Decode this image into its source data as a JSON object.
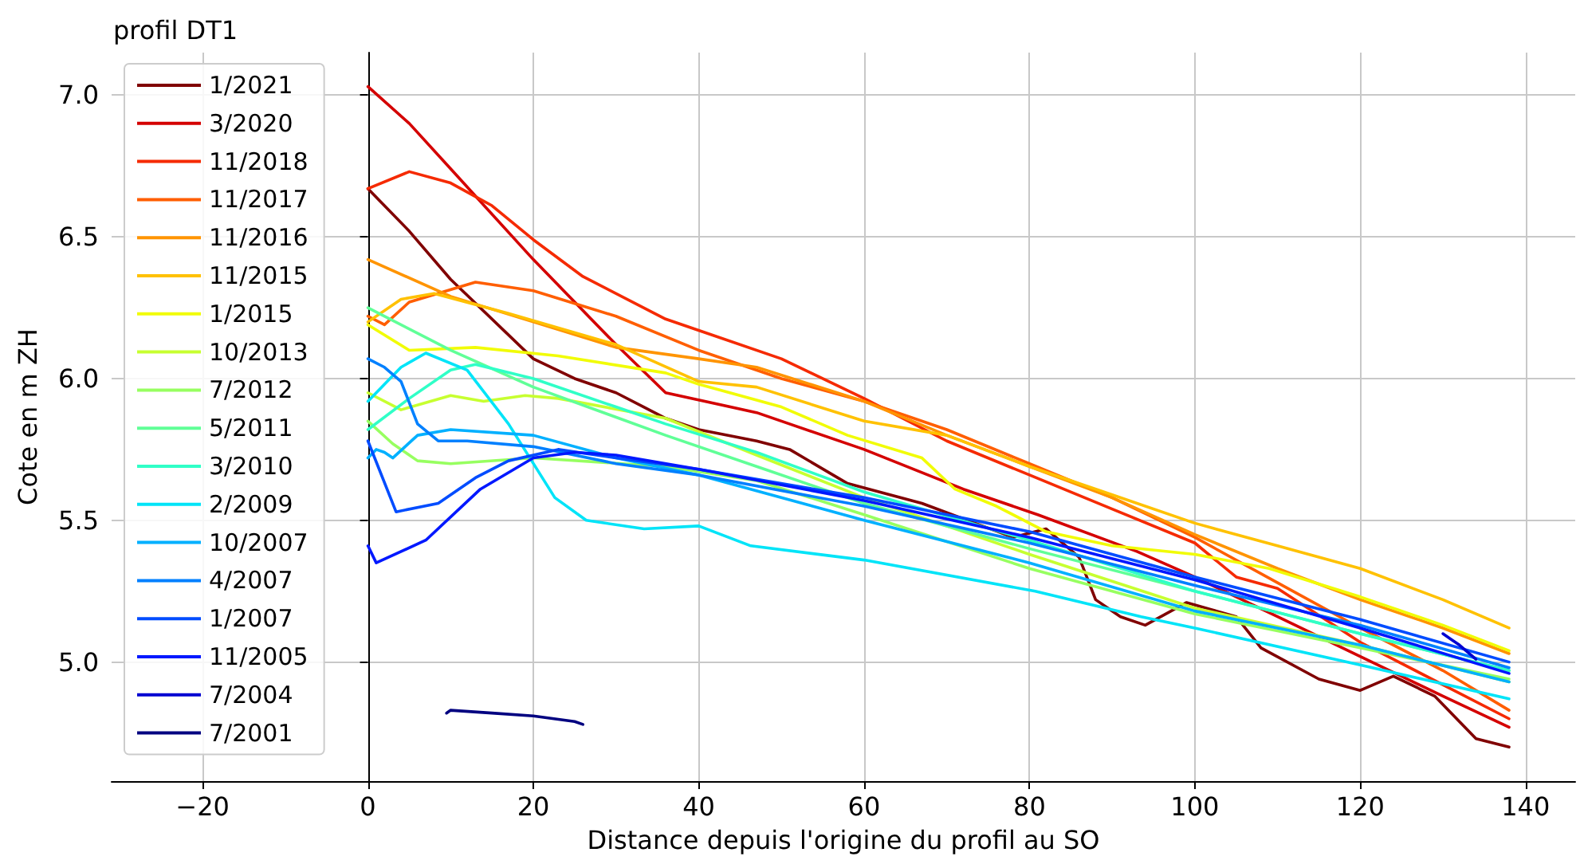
{
  "chart_data": {
    "type": "line",
    "title": "profil DT1",
    "xlabel": "Distance depuis l'origine du profil au SO",
    "ylabel": "Cote en m ZH",
    "xlim": [
      -31,
      146
    ],
    "ylim": [
      4.58,
      7.15
    ],
    "xticks": [
      -20,
      0,
      20,
      40,
      60,
      80,
      100,
      120,
      140
    ],
    "yticks": [
      {
        "value": 5,
        "label": "5.0"
      },
      {
        "value": 5.5,
        "label": "5.5"
      },
      {
        "value": 6,
        "label": "6.0"
      },
      {
        "value": 6.5,
        "label": "6.5"
      },
      {
        "value": 7,
        "label": "7.0"
      }
    ],
    "grid": true,
    "legend": "top left",
    "marker": "none",
    "line_style": "solid",
    "series": [
      {
        "name": "1/2021",
        "color": "#800000",
        "x": [
          0,
          5,
          10,
          20,
          25,
          30,
          36,
          40,
          47,
          51,
          58,
          67,
          78,
          82,
          86,
          88,
          91,
          94,
          99,
          105,
          108,
          115,
          120,
          124,
          129,
          134,
          138
        ],
        "values": [
          6.67,
          6.52,
          6.35,
          6.07,
          6.0,
          5.95,
          5.86,
          5.82,
          5.78,
          5.75,
          5.63,
          5.56,
          5.44,
          5.47,
          5.37,
          5.22,
          5.16,
          5.13,
          5.21,
          5.16,
          5.05,
          4.94,
          4.9,
          4.95,
          4.88,
          4.73,
          4.7
        ]
      },
      {
        "name": "3/2020",
        "color": "#d40000",
        "x": [
          0,
          5,
          10,
          20,
          30,
          36,
          47,
          60,
          72,
          81,
          93,
          100,
          110,
          120,
          130,
          138
        ],
        "values": [
          7.03,
          6.9,
          6.74,
          6.42,
          6.12,
          5.95,
          5.88,
          5.75,
          5.61,
          5.52,
          5.39,
          5.3,
          5.16,
          5.02,
          4.88,
          4.77
        ]
      },
      {
        "name": "11/2018",
        "color": "#f52a00",
        "x": [
          0,
          5,
          10,
          15,
          20,
          26,
          36,
          40,
          50,
          60,
          70,
          80,
          90,
          100,
          105,
          110,
          120,
          130,
          138
        ],
        "values": [
          6.67,
          6.73,
          6.69,
          6.61,
          6.49,
          6.36,
          6.21,
          6.17,
          6.07,
          5.93,
          5.78,
          5.66,
          5.54,
          5.42,
          5.3,
          5.26,
          5.07,
          4.92,
          4.8
        ]
      },
      {
        "name": "11/2017",
        "color": "#ff5e00",
        "x": [
          0,
          2,
          5,
          13,
          20,
          30,
          40,
          50,
          60,
          70,
          80,
          90,
          100,
          110,
          120,
          130,
          138
        ],
        "values": [
          6.22,
          6.19,
          6.27,
          6.34,
          6.31,
          6.22,
          6.1,
          6.0,
          5.92,
          5.82,
          5.7,
          5.58,
          5.44,
          5.28,
          5.12,
          4.97,
          4.83
        ]
      },
      {
        "name": "11/2016",
        "color": "#ff9400",
        "x": [
          0,
          10,
          20,
          30,
          40,
          47,
          60,
          70,
          80,
          90,
          100,
          110,
          120,
          130,
          138
        ],
        "values": [
          6.42,
          6.29,
          6.2,
          6.11,
          6.07,
          6.04,
          5.92,
          5.8,
          5.69,
          5.58,
          5.45,
          5.33,
          5.22,
          5.12,
          5.03
        ]
      },
      {
        "name": "11/2015",
        "color": "#ffc100",
        "x": [
          0,
          4,
          8,
          17,
          30,
          40,
          47,
          60,
          70,
          80,
          90,
          100,
          110,
          120,
          130,
          138
        ],
        "values": [
          6.2,
          6.28,
          6.3,
          6.23,
          6.12,
          5.99,
          5.97,
          5.85,
          5.8,
          5.69,
          5.59,
          5.49,
          5.41,
          5.33,
          5.22,
          5.12
        ]
      },
      {
        "name": "1/2015",
        "color": "#f1fc06",
        "x": [
          0,
          5,
          13,
          23,
          36,
          40,
          50,
          58,
          67,
          71,
          76,
          82,
          90,
          100,
          109,
          120,
          130,
          138
        ],
        "values": [
          6.19,
          6.1,
          6.11,
          6.08,
          6.02,
          5.98,
          5.9,
          5.8,
          5.72,
          5.61,
          5.55,
          5.46,
          5.41,
          5.38,
          5.33,
          5.23,
          5.13,
          5.04
        ]
      },
      {
        "name": "10/2013",
        "color": "#c7ff30",
        "x": [
          0,
          4,
          10,
          14,
          19,
          23,
          36,
          47,
          60,
          80,
          100,
          120,
          138
        ],
        "values": [
          5.95,
          5.89,
          5.94,
          5.92,
          5.94,
          5.93,
          5.86,
          5.73,
          5.58,
          5.38,
          5.19,
          5.06,
          4.93
        ]
      },
      {
        "name": "7/2012",
        "color": "#97ff60",
        "x": [
          0,
          3,
          6,
          10,
          20,
          36,
          47,
          60,
          80,
          100,
          120,
          138
        ],
        "values": [
          5.85,
          5.77,
          5.71,
          5.7,
          5.72,
          5.69,
          5.64,
          5.52,
          5.33,
          5.17,
          5.05,
          4.94
        ]
      },
      {
        "name": "5/2011",
        "color": "#60ff97",
        "x": [
          0,
          10,
          20,
          36,
          47,
          60,
          80,
          100,
          120,
          138
        ],
        "values": [
          6.25,
          6.1,
          5.97,
          5.8,
          5.69,
          5.56,
          5.4,
          5.25,
          5.1,
          4.97
        ]
      },
      {
        "name": "3/2010",
        "color": "#30ffc7",
        "x": [
          0,
          5,
          10,
          13,
          20,
          30,
          36,
          47,
          60,
          80,
          100,
          120,
          138
        ],
        "values": [
          5.82,
          5.93,
          6.03,
          6.05,
          6.0,
          5.9,
          5.84,
          5.74,
          5.6,
          5.43,
          5.25,
          5.1,
          4.97
        ]
      },
      {
        "name": "2/2009",
        "color": "#00e4f8",
        "x": [
          0,
          4,
          7,
          12,
          17,
          22.6,
          26.4,
          33.4,
          40,
          46.3,
          60,
          80.7,
          93.5,
          100,
          120,
          138
        ],
        "values": [
          5.92,
          6.04,
          6.09,
          6.03,
          5.84,
          5.58,
          5.5,
          5.47,
          5.48,
          5.41,
          5.36,
          5.25,
          5.16,
          5.12,
          4.99,
          4.87
        ]
      },
      {
        "name": "10/2007",
        "color": "#00b0ff",
        "x": [
          0,
          1,
          2,
          3,
          6,
          10,
          20,
          30,
          40,
          60,
          80,
          100,
          120,
          138
        ],
        "values": [
          5.72,
          5.75,
          5.74,
          5.72,
          5.8,
          5.82,
          5.8,
          5.72,
          5.66,
          5.5,
          5.35,
          5.18,
          5.06,
          4.93
        ]
      },
      {
        "name": "4/2007",
        "color": "#0080ff",
        "x": [
          0,
          2,
          4,
          6,
          8.5,
          12,
          20,
          30,
          40,
          60,
          80,
          100,
          120,
          138
        ],
        "values": [
          6.07,
          6.04,
          5.99,
          5.84,
          5.78,
          5.78,
          5.76,
          5.7,
          5.66,
          5.55,
          5.42,
          5.27,
          5.13,
          4.98
        ]
      },
      {
        "name": "1/2007",
        "color": "#004cff",
        "x": [
          0,
          3.4,
          8.5,
          13,
          17,
          23,
          30,
          40,
          60,
          80,
          100,
          120,
          138
        ],
        "values": [
          5.78,
          5.53,
          5.56,
          5.65,
          5.71,
          5.75,
          5.72,
          5.68,
          5.58,
          5.46,
          5.3,
          5.15,
          5.0
        ]
      },
      {
        "name": "11/2005",
        "color": "#0018ff",
        "x": [
          0,
          1,
          7,
          13.6,
          20,
          25,
          30,
          40,
          60,
          80,
          100,
          120,
          138
        ],
        "values": [
          5.41,
          5.35,
          5.43,
          5.61,
          5.72,
          5.74,
          5.73,
          5.68,
          5.57,
          5.44,
          5.29,
          5.12,
          4.96
        ]
      },
      {
        "name": "7/2004",
        "color": "#0000d1",
        "x": [
          130,
          131,
          132,
          134
        ],
        "values": [
          5.1,
          5.08,
          5.06,
          5.01
        ]
      },
      {
        "name": "7/2001",
        "color": "#000080",
        "x": [
          9.5,
          10,
          15,
          20,
          25,
          26
        ],
        "values": [
          4.82,
          4.83,
          4.82,
          4.81,
          4.79,
          4.78
        ]
      }
    ]
  }
}
